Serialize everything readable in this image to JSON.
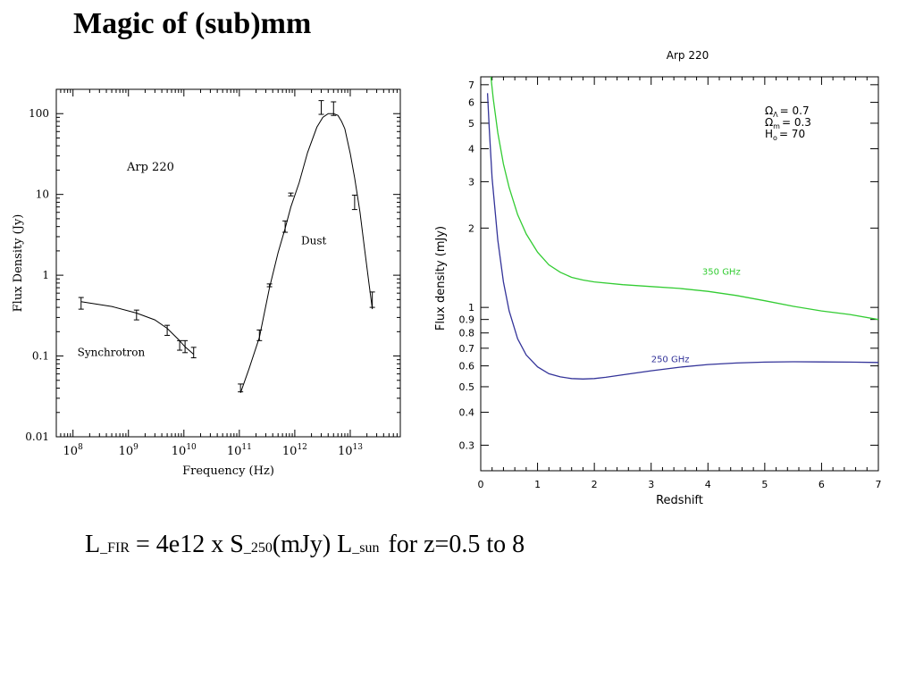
{
  "slide": {
    "title": "Magic of (sub)mm"
  },
  "formula": {
    "lfir_main": "L",
    "lfir_sub": "_FIR",
    "middle": " = 4e12 x S",
    "s_sub": "_250",
    "units": "(mJy) L",
    "lsun_sub": "_sun",
    "tail": "for z=0.5 to 8"
  },
  "chart_data": [
    {
      "type": "scatter",
      "title": "",
      "annotation_title": "Arp 220",
      "xlabel": "Frequency (Hz)",
      "ylabel": "Flux Density (Jy)",
      "xscale": "log",
      "yscale": "log",
      "xlim": [
        50000000.0,
        80000000000000.0
      ],
      "ylim": [
        0.01,
        200
      ],
      "x_ticks": [
        {
          "value": 100000000.0,
          "base": "10",
          "exp": "8"
        },
        {
          "value": 1000000000.0,
          "base": "10",
          "exp": "9"
        },
        {
          "value": 10000000000.0,
          "base": "10",
          "exp": "10"
        },
        {
          "value": 100000000000.0,
          "base": "10",
          "exp": "11"
        },
        {
          "value": 1000000000000.0,
          "base": "10",
          "exp": "12"
        },
        {
          "value": 10000000000000.0,
          "base": "10",
          "exp": "13"
        }
      ],
      "y_ticks": [
        {
          "value": 0.01,
          "label": "0.01"
        },
        {
          "value": 0.1,
          "label": "0.1"
        },
        {
          "value": 1,
          "label": "1"
        },
        {
          "value": 10,
          "label": "10"
        },
        {
          "value": 100,
          "label": "100"
        }
      ],
      "annotations": [
        {
          "text": "Synchrotron",
          "x": 120000000.0,
          "y": 0.1
        },
        {
          "text": "Dust",
          "x": 1300000000000.0,
          "y": 2.4
        }
      ],
      "points": [
        {
          "x": 140000000.0,
          "y": 0.45,
          "lo": 0.38,
          "hi": 0.53
        },
        {
          "x": 1400000000.0,
          "y": 0.32,
          "lo": 0.28,
          "hi": 0.37
        },
        {
          "x": 5000000000.0,
          "y": 0.21,
          "lo": 0.18,
          "hi": 0.24
        },
        {
          "x": 8400000000.0,
          "y": 0.135,
          "lo": 0.118,
          "hi": 0.155
        },
        {
          "x": 10500000000.0,
          "y": 0.13,
          "lo": 0.11,
          "hi": 0.155
        },
        {
          "x": 15000000000.0,
          "y": 0.11,
          "lo": 0.095,
          "hi": 0.128
        },
        {
          "x": 105000000000.0,
          "y": 0.04,
          "lo": 0.036,
          "hi": 0.045
        },
        {
          "x": 230000000000.0,
          "y": 0.18,
          "lo": 0.155,
          "hi": 0.21
        },
        {
          "x": 350000000000.0,
          "y": 0.75,
          "lo": 0.72,
          "hi": 0.78
        },
        {
          "x": 670000000000.0,
          "y": 4,
          "lo": 3.4,
          "hi": 4.7
        },
        {
          "x": 850000000000.0,
          "y": 10,
          "lo": 9.6,
          "hi": 10.4
        },
        {
          "x": 3000000000000.0,
          "y": 120,
          "lo": 98,
          "hi": 145
        },
        {
          "x": 5000000000000.0,
          "y": 115,
          "lo": 95,
          "hi": 140
        },
        {
          "x": 12000000000000.0,
          "y": 8,
          "lo": 6.5,
          "hi": 9.8
        },
        {
          "x": 25000000000000.0,
          "y": 0.5,
          "lo": 0.4,
          "hi": 0.62
        }
      ],
      "fit_curves": [
        {
          "x": [
            140000000.0,
            500000000.0,
            1400000000.0,
            3000000000.0,
            5000000000.0,
            8000000000.0,
            10500000000.0,
            15000000000.0
          ],
          "y": [
            0.47,
            0.41,
            0.34,
            0.28,
            0.22,
            0.16,
            0.13,
            0.105
          ]
        },
        {
          "x": [
            105000000000.0,
            150000000000.0,
            230000000000.0,
            350000000000.0,
            500000000000.0,
            670000000000.0,
            850000000000.0,
            1200000000000.0,
            1700000000000.0,
            2500000000000.0,
            3200000000000.0,
            4000000000000.0,
            5000000000000.0,
            6000000000000.0,
            7000000000000.0,
            8000000000000.0,
            10000000000000.0,
            12000000000000.0,
            15000000000000.0,
            18000000000000.0,
            22000000000000.0,
            25000000000000.0
          ],
          "y": [
            0.035,
            0.07,
            0.17,
            0.7,
            1.9,
            3.8,
            7,
            14,
            33,
            68,
            90,
            100,
            100,
            95,
            80,
            65,
            32,
            16,
            6,
            2.2,
            0.75,
            0.38
          ]
        }
      ]
    },
    {
      "type": "line",
      "title": "Arp 220",
      "xlabel": "Redshift",
      "ylabel": "Flux density (mJy)",
      "yscale": "log",
      "xlim": [
        0,
        7
      ],
      "ylim": [
        0.24,
        7.5
      ],
      "x_ticks": [
        "0",
        "1",
        "2",
        "3",
        "4",
        "5",
        "6",
        "7"
      ],
      "y_ticks": [
        {
          "value": 0.3,
          "label": "0.3"
        },
        {
          "value": 0.4,
          "label": "0.4"
        },
        {
          "value": 0.5,
          "label": "0.5"
        },
        {
          "value": 0.6,
          "label": "0.6"
        },
        {
          "value": 0.7,
          "label": "0.7"
        },
        {
          "value": 0.8,
          "label": "0.8"
        },
        {
          "value": 0.9,
          "label": "0.9"
        },
        {
          "value": 1,
          "label": "1"
        },
        {
          "value": 2,
          "label": "2"
        },
        {
          "value": 3,
          "label": "3"
        },
        {
          "value": 4,
          "label": "4"
        },
        {
          "value": 5,
          "label": "5"
        },
        {
          "value": 6,
          "label": "6"
        },
        {
          "value": 7,
          "label": "7"
        }
      ],
      "cosmology": [
        {
          "symbol": "Ω",
          "sub": "Λ",
          "eq": "=  0.7"
        },
        {
          "symbol": "Ω",
          "sub": "m",
          "eq": "=  0.3"
        },
        {
          "symbol": "H",
          "sub": "o",
          "eq": "=  70"
        }
      ],
      "series": [
        {
          "name": "350 GHz",
          "color": "#33cc33",
          "label_pos": {
            "x": 3.9,
            "y": 1.33
          },
          "x": [
            0.18,
            0.22,
            0.3,
            0.4,
            0.5,
            0.65,
            0.8,
            1,
            1.2,
            1.4,
            1.6,
            1.8,
            2,
            2.5,
            3,
            3.5,
            4,
            4.5,
            5,
            5.5,
            6,
            6.5,
            7
          ],
          "y": [
            7.5,
            6.2,
            4.6,
            3.5,
            2.85,
            2.25,
            1.9,
            1.62,
            1.45,
            1.36,
            1.3,
            1.27,
            1.25,
            1.22,
            1.2,
            1.18,
            1.15,
            1.11,
            1.06,
            1.01,
            0.97,
            0.94,
            0.9
          ]
        },
        {
          "name": "250 GHz",
          "color": "#333399",
          "label_pos": {
            "x": 3.0,
            "y": 0.62
          },
          "x": [
            0.12,
            0.15,
            0.2,
            0.3,
            0.4,
            0.5,
            0.65,
            0.8,
            1,
            1.2,
            1.4,
            1.6,
            1.8,
            2,
            2.2,
            2.5,
            3,
            3.5,
            4,
            4.5,
            5,
            5.5,
            6,
            6.5,
            7
          ],
          "y": [
            6.5,
            4.8,
            3.1,
            1.8,
            1.25,
            0.97,
            0.76,
            0.66,
            0.595,
            0.56,
            0.545,
            0.537,
            0.535,
            0.537,
            0.543,
            0.555,
            0.575,
            0.593,
            0.607,
            0.615,
            0.62,
            0.622,
            0.621,
            0.62,
            0.618
          ]
        }
      ]
    }
  ]
}
